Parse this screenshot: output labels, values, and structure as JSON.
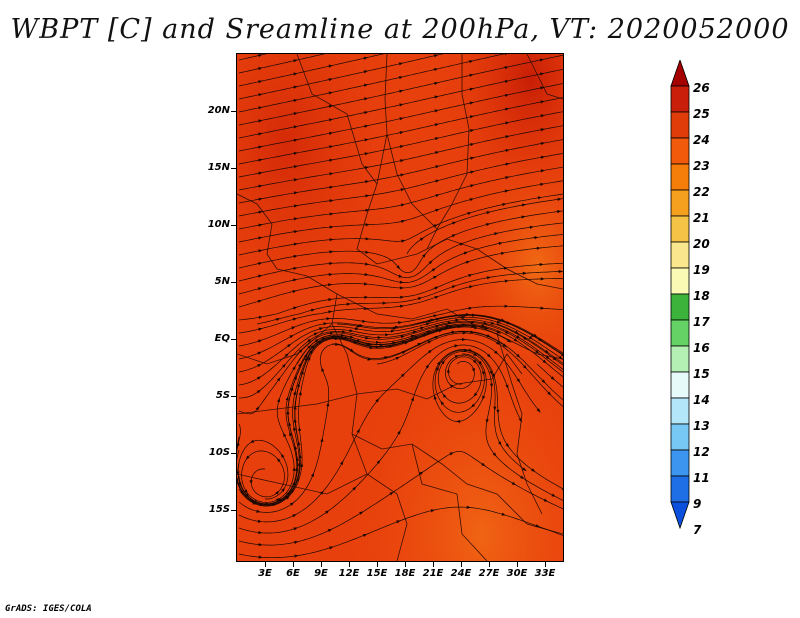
{
  "title": "WBPT [C] and Sreamline at 200hPa, VT: 2020052000",
  "credit": "GrADS: IGES/COLA",
  "map": {
    "lat_labels": [
      "20N",
      "15N",
      "10N",
      "5N",
      "EQ",
      "5S",
      "10S",
      "15S"
    ],
    "lon_labels": [
      "3E",
      "6E",
      "9E",
      "12E",
      "15E",
      "18E",
      "21E",
      "24E",
      "27E",
      "30E",
      "33E"
    ],
    "field_color": "#e8400c",
    "field_color_dark": "#d22a08",
    "field_color_light": "#f05a10"
  },
  "colorbar": {
    "labels": [
      "26",
      "25",
      "24",
      "23",
      "22",
      "21",
      "20",
      "19",
      "18",
      "17",
      "16",
      "15",
      "14",
      "13",
      "12",
      "11",
      "9",
      "7"
    ],
    "colors": [
      "#a50000",
      "#c81e0a",
      "#e03c0a",
      "#f05a0a",
      "#f57d0a",
      "#f5a01e",
      "#f5c346",
      "#fae68c",
      "#fafab4",
      "#3cb43c",
      "#64d264",
      "#b4f0b4",
      "#e6fafa",
      "#b4e6fa",
      "#78c8f5",
      "#3c96f0",
      "#1e6ee6",
      "#0a50dc"
    ]
  }
}
